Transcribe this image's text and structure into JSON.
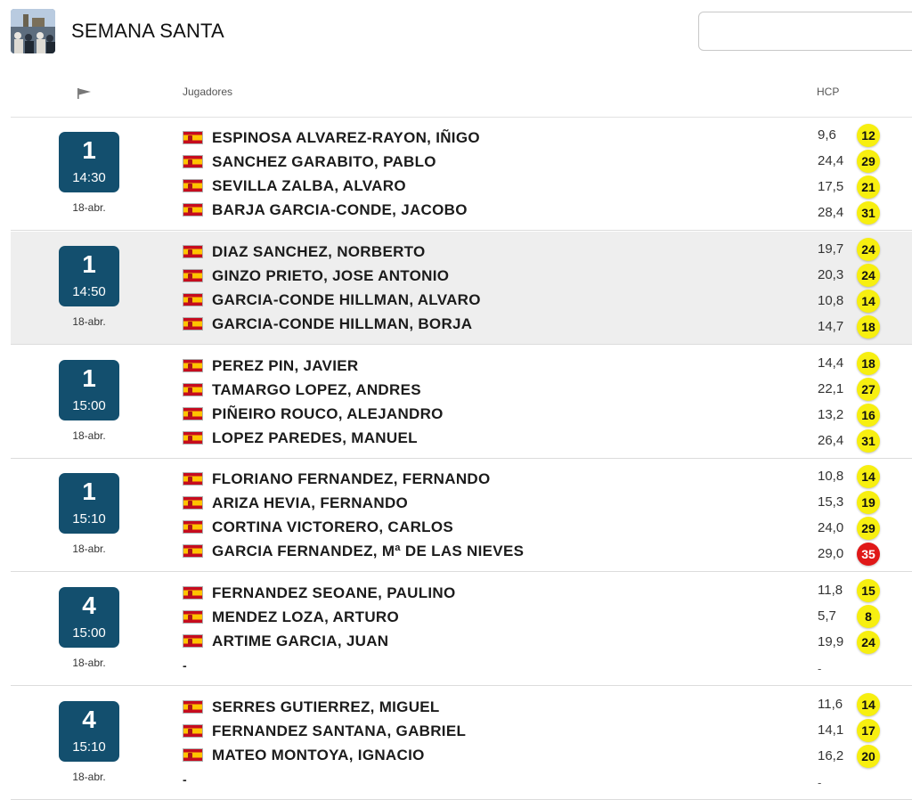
{
  "event": {
    "title": "SEMANA SANTA"
  },
  "search": {
    "placeholder": "",
    "value": ""
  },
  "columns": {
    "players": "Jugadores",
    "hcp": "HCP"
  },
  "colors": {
    "tee_box": "#134f6e",
    "badge": "#f7ef10",
    "badge_alert": "#e01818"
  },
  "groups": [
    {
      "tee": "1",
      "time": "14:30",
      "date": "18-abr.",
      "players": [
        {
          "name": "ESPINOSA ALVAREZ-RAYON, IÑIGO",
          "hcp": "9,6",
          "playing": "12",
          "alert": false
        },
        {
          "name": "SANCHEZ GARABITO, PABLO",
          "hcp": "24,4",
          "playing": "29",
          "alert": false
        },
        {
          "name": "SEVILLA ZALBA, ALVARO",
          "hcp": "17,5",
          "playing": "21",
          "alert": false
        },
        {
          "name": "BARJA GARCIA-CONDE, JACOBO",
          "hcp": "28,4",
          "playing": "31",
          "alert": false
        }
      ]
    },
    {
      "tee": "1",
      "time": "14:50",
      "date": "18-abr.",
      "players": [
        {
          "name": "DIAZ SANCHEZ, NORBERTO",
          "hcp": "19,7",
          "playing": "24",
          "alert": false
        },
        {
          "name": "GINZO PRIETO, JOSE ANTONIO",
          "hcp": "20,3",
          "playing": "24",
          "alert": false
        },
        {
          "name": "GARCIA-CONDE HILLMAN, ALVARO",
          "hcp": "10,8",
          "playing": "14",
          "alert": false
        },
        {
          "name": "GARCIA-CONDE HILLMAN, BORJA",
          "hcp": "14,7",
          "playing": "18",
          "alert": false
        }
      ]
    },
    {
      "tee": "1",
      "time": "15:00",
      "date": "18-abr.",
      "players": [
        {
          "name": "PEREZ PIN, JAVIER",
          "hcp": "14,4",
          "playing": "18",
          "alert": false
        },
        {
          "name": "TAMARGO LOPEZ, ANDRES",
          "hcp": "22,1",
          "playing": "27",
          "alert": false
        },
        {
          "name": "PIÑEIRO ROUCO, ALEJANDRO",
          "hcp": "13,2",
          "playing": "16",
          "alert": false
        },
        {
          "name": "LOPEZ PAREDES, MANUEL",
          "hcp": "26,4",
          "playing": "31",
          "alert": false
        }
      ]
    },
    {
      "tee": "1",
      "time": "15:10",
      "date": "18-abr.",
      "players": [
        {
          "name": "FLORIANO FERNANDEZ, FERNANDO",
          "hcp": "10,8",
          "playing": "14",
          "alert": false
        },
        {
          "name": "ARIZA HEVIA, FERNANDO",
          "hcp": "15,3",
          "playing": "19",
          "alert": false
        },
        {
          "name": "CORTINA VICTORERO, CARLOS",
          "hcp": "24,0",
          "playing": "29",
          "alert": false
        },
        {
          "name": "GARCIA FERNANDEZ, Mª DE LAS NIEVES",
          "hcp": "29,0",
          "playing": "35",
          "alert": true
        }
      ]
    },
    {
      "tee": "4",
      "time": "15:00",
      "date": "18-abr.",
      "players": [
        {
          "name": "FERNANDEZ SEOANE, PAULINO",
          "hcp": "11,8",
          "playing": "15",
          "alert": false
        },
        {
          "name": "MENDEZ LOZA, ARTURO",
          "hcp": "5,7",
          "playing": "8",
          "alert": false
        },
        {
          "name": "ARTIME GARCIA, JUAN",
          "hcp": "19,9",
          "playing": "24",
          "alert": false
        }
      ],
      "empty_slot": {
        "name": "-",
        "hcp": "-"
      }
    },
    {
      "tee": "4",
      "time": "15:10",
      "date": "18-abr.",
      "players": [
        {
          "name": "SERRES GUTIERREZ, MIGUEL",
          "hcp": "11,6",
          "playing": "14",
          "alert": false
        },
        {
          "name": "FERNANDEZ SANTANA, GABRIEL",
          "hcp": "14,1",
          "playing": "17",
          "alert": false
        },
        {
          "name": "MATEO MONTOYA, IGNACIO",
          "hcp": "16,2",
          "playing": "20",
          "alert": false
        }
      ],
      "empty_slot": {
        "name": "-",
        "hcp": "-"
      }
    }
  ]
}
